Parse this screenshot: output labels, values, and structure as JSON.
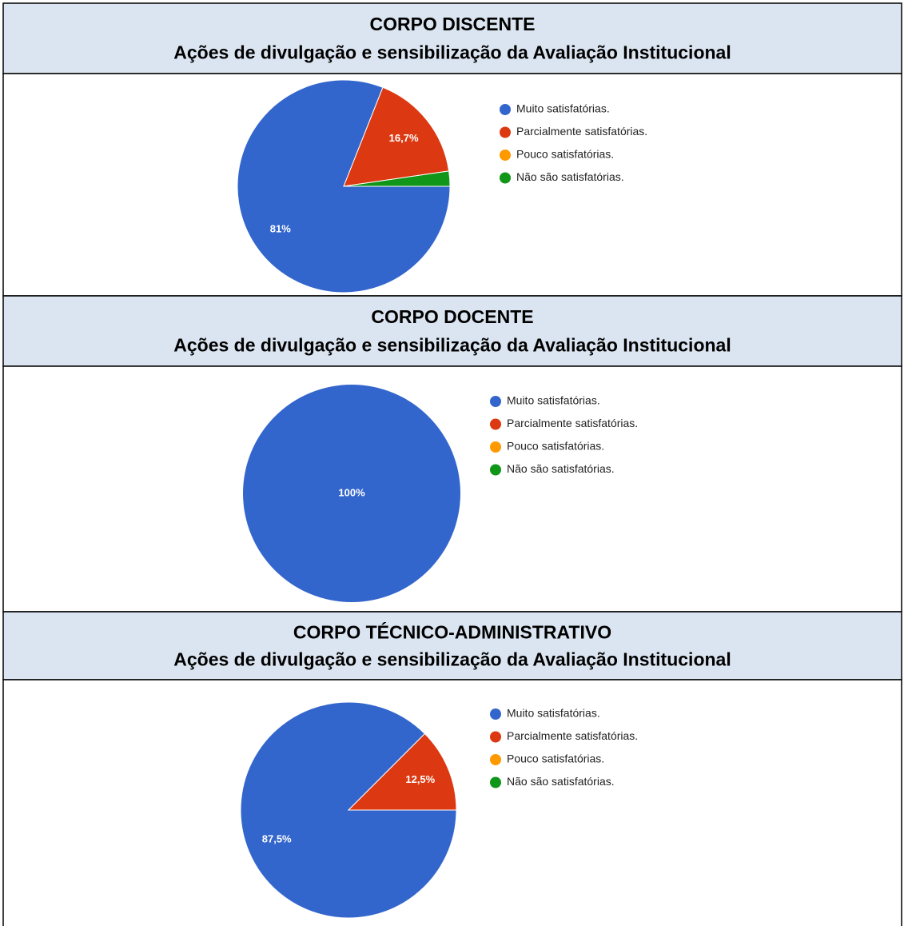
{
  "chart_data": [
    {
      "type": "pie",
      "title": "CORPO DISCENTE",
      "subtitle": "Ações de divulgação e sensibilização da Avaliação Institucional",
      "categories": [
        "Muito satisfatórias.",
        "Parcialmente satisfatórias.",
        "Pouco satisfatórias.",
        "Não são satisfatórias."
      ],
      "values": [
        81,
        16.7,
        0,
        2.3
      ],
      "value_labels": [
        "81%",
        "16,7%",
        null,
        null
      ],
      "colors": [
        "#3366cc",
        "#dc3912",
        "#ff9900",
        "#109618"
      ],
      "legend": "right"
    },
    {
      "type": "pie",
      "title": "CORPO DOCENTE",
      "subtitle": "Ações de divulgação e sensibilização da Avaliação Institucional",
      "categories": [
        "Muito satisfatórias.",
        "Parcialmente satisfatórias.",
        "Pouco satisfatórias.",
        "Não são satisfatórias."
      ],
      "values": [
        100,
        0,
        0,
        0
      ],
      "value_labels": [
        "100%",
        null,
        null,
        null
      ],
      "colors": [
        "#3366cc",
        "#dc3912",
        "#ff9900",
        "#109618"
      ],
      "legend": "right"
    },
    {
      "type": "pie",
      "title": "CORPO TÉCNICO-ADMINISTRATIVO",
      "subtitle": "Ações de divulgação e sensibilização da Avaliação Institucional",
      "categories": [
        "Muito satisfatórias.",
        "Parcialmente satisfatórias.",
        "Pouco satisfatórias.",
        "Não são satisfatórias."
      ],
      "values": [
        87.5,
        12.5,
        0,
        0
      ],
      "value_labels": [
        "87,5%",
        "12,5%",
        null,
        null
      ],
      "colors": [
        "#3366cc",
        "#dc3912",
        "#ff9900",
        "#109618"
      ],
      "legend": "right"
    }
  ]
}
